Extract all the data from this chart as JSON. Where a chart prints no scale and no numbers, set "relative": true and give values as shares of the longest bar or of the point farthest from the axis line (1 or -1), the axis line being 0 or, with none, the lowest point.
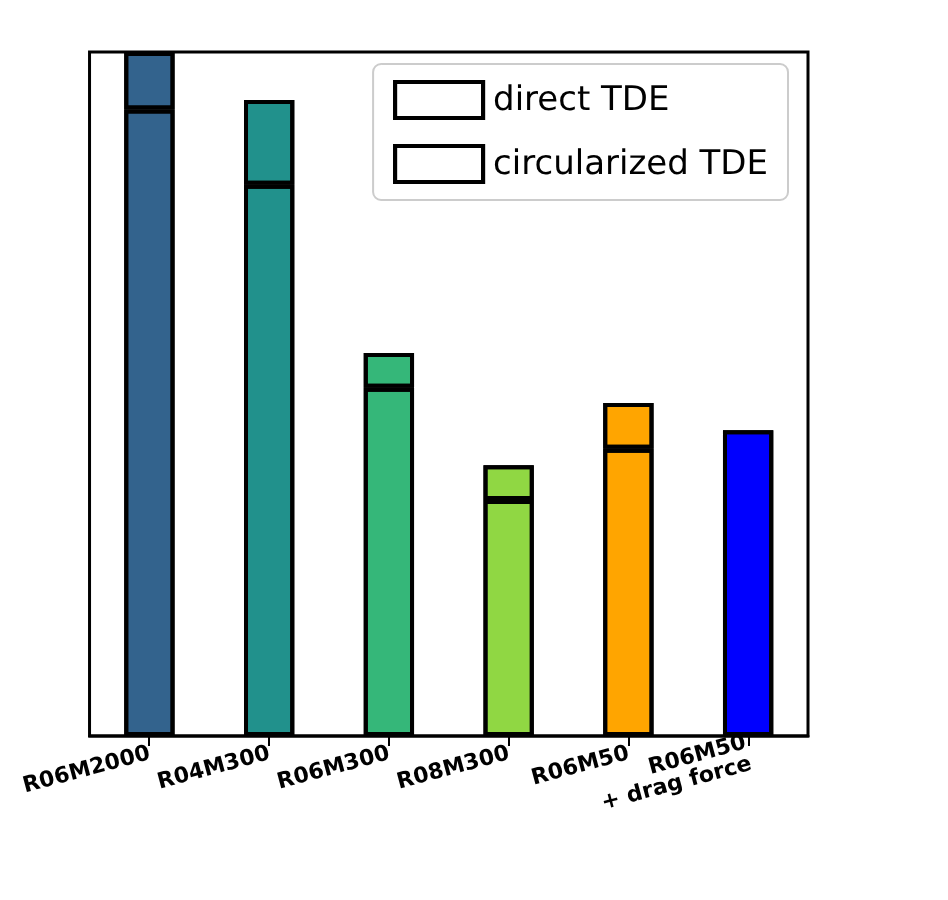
{
  "chart_data": {
    "type": "bar",
    "stacked": true,
    "relative": true,
    "legend": "top right",
    "categories": [
      "R06M2000",
      "R04M300",
      "R06M300",
      "R08M300",
      "R06M50",
      "R06M50\n+ drag force"
    ],
    "series": [
      {
        "name": "direct TDE",
        "colors": [
          "#33638d",
          "#21918c",
          "#35b779",
          "#90d743",
          "#ffa500",
          "#0000ff"
        ],
        "values": [
          0.916,
          0.806,
          0.509,
          0.345,
          0.42,
          0.447
        ]
      },
      {
        "name": "circularized TDE",
        "colors": [
          "#33638d",
          "#21918c",
          "#35b779",
          "#90d743",
          "#ffa500",
          "#0000ff"
        ],
        "values": [
          0.084,
          0.124,
          0.051,
          0.051,
          0.067,
          null
        ]
      }
    ]
  }
}
